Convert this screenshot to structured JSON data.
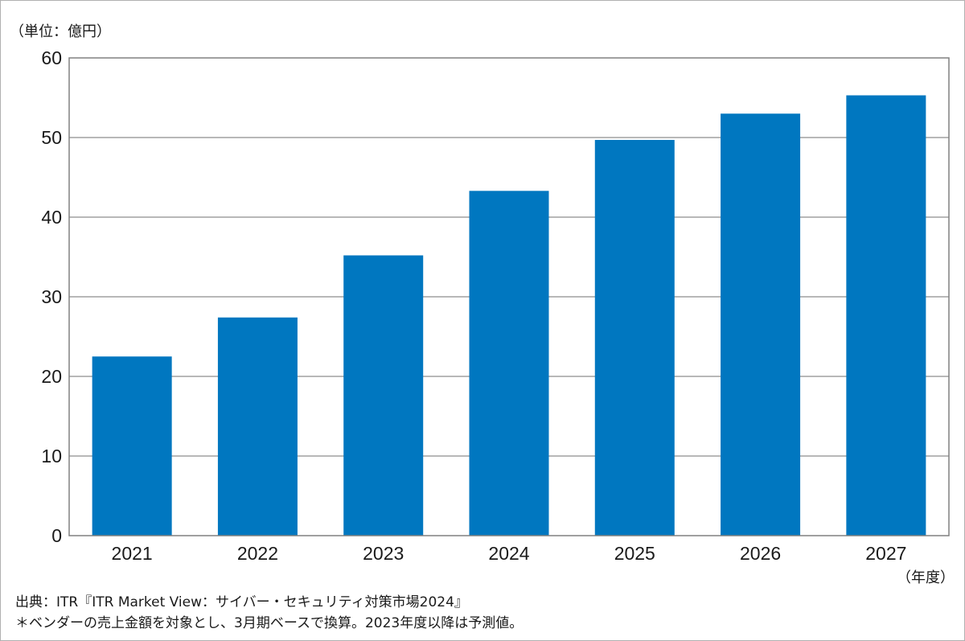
{
  "unit_label": "（単位：億円）",
  "x_unit_label": "（年度）",
  "source_note": "出典：ITR『ITR Market View：サイバー・セキュリティ対策市場2024』",
  "footnote": "＊ベンダーの売上金額を対象とし、3月期ベースで換算。2023年度以降は予測値。",
  "colors": {
    "bar": "#0077c0",
    "grid": "#a0a0a0",
    "axis": "#808080"
  },
  "chart_data": {
    "type": "bar",
    "categories": [
      "2021",
      "2022",
      "2023",
      "2024",
      "2025",
      "2026",
      "2027"
    ],
    "values": [
      22.5,
      27.4,
      35.2,
      43.3,
      49.7,
      53.0,
      55.3
    ],
    "ylim": [
      0,
      60
    ],
    "yticks": [
      0,
      10,
      20,
      30,
      40,
      50,
      60
    ],
    "grid": true,
    "legend": "none"
  }
}
